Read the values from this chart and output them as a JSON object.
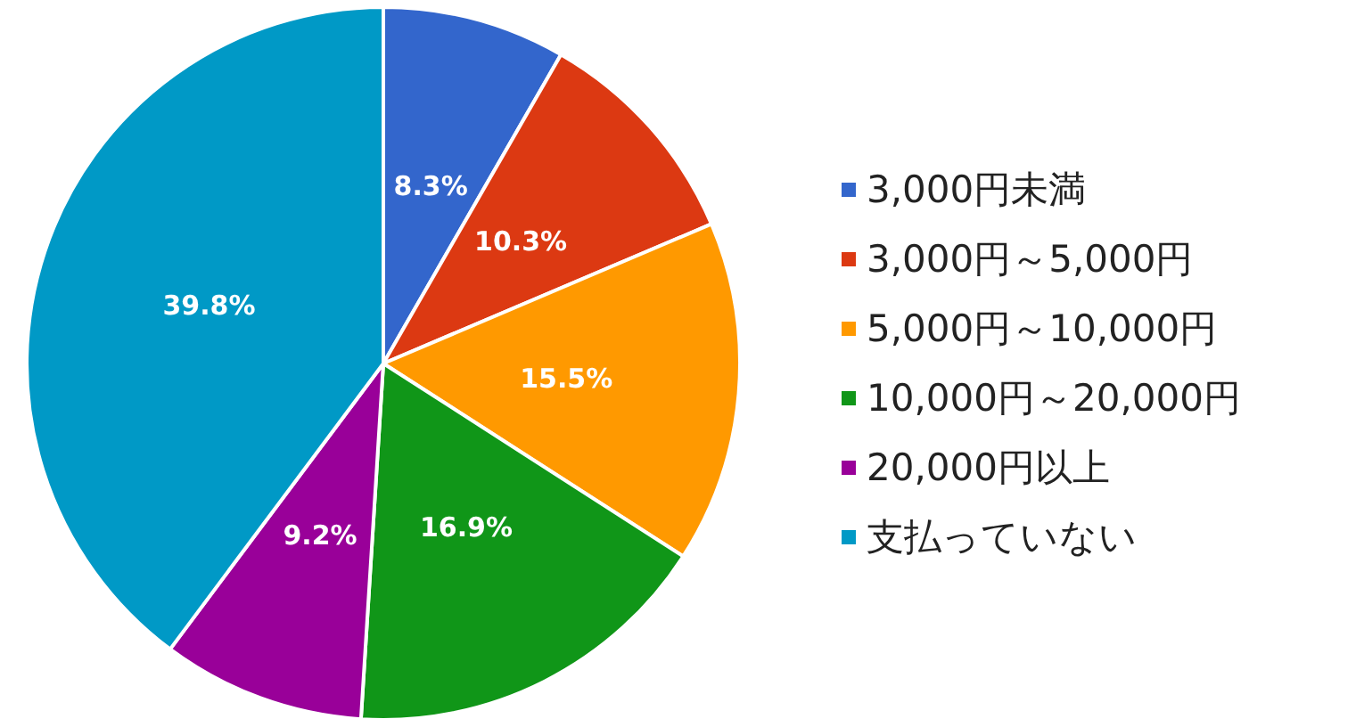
{
  "chart_data": {
    "type": "pie",
    "categories": [
      "3,000円未満",
      "3,000円～5,000円",
      "5,000円～10,000円",
      "10,000円～20,000円",
      "20,000円以上",
      "支払っていない"
    ],
    "values": [
      8.3,
      10.3,
      15.5,
      16.9,
      9.2,
      39.8
    ],
    "colors": [
      "#3366cc",
      "#dc3912",
      "#ff9900",
      "#109618",
      "#990099",
      "#0099c6"
    ],
    "value_labels": [
      "8.3%",
      "10.3%",
      "15.5%",
      "16.9%",
      "9.2%",
      "39.8%"
    ],
    "legend": "right"
  }
}
